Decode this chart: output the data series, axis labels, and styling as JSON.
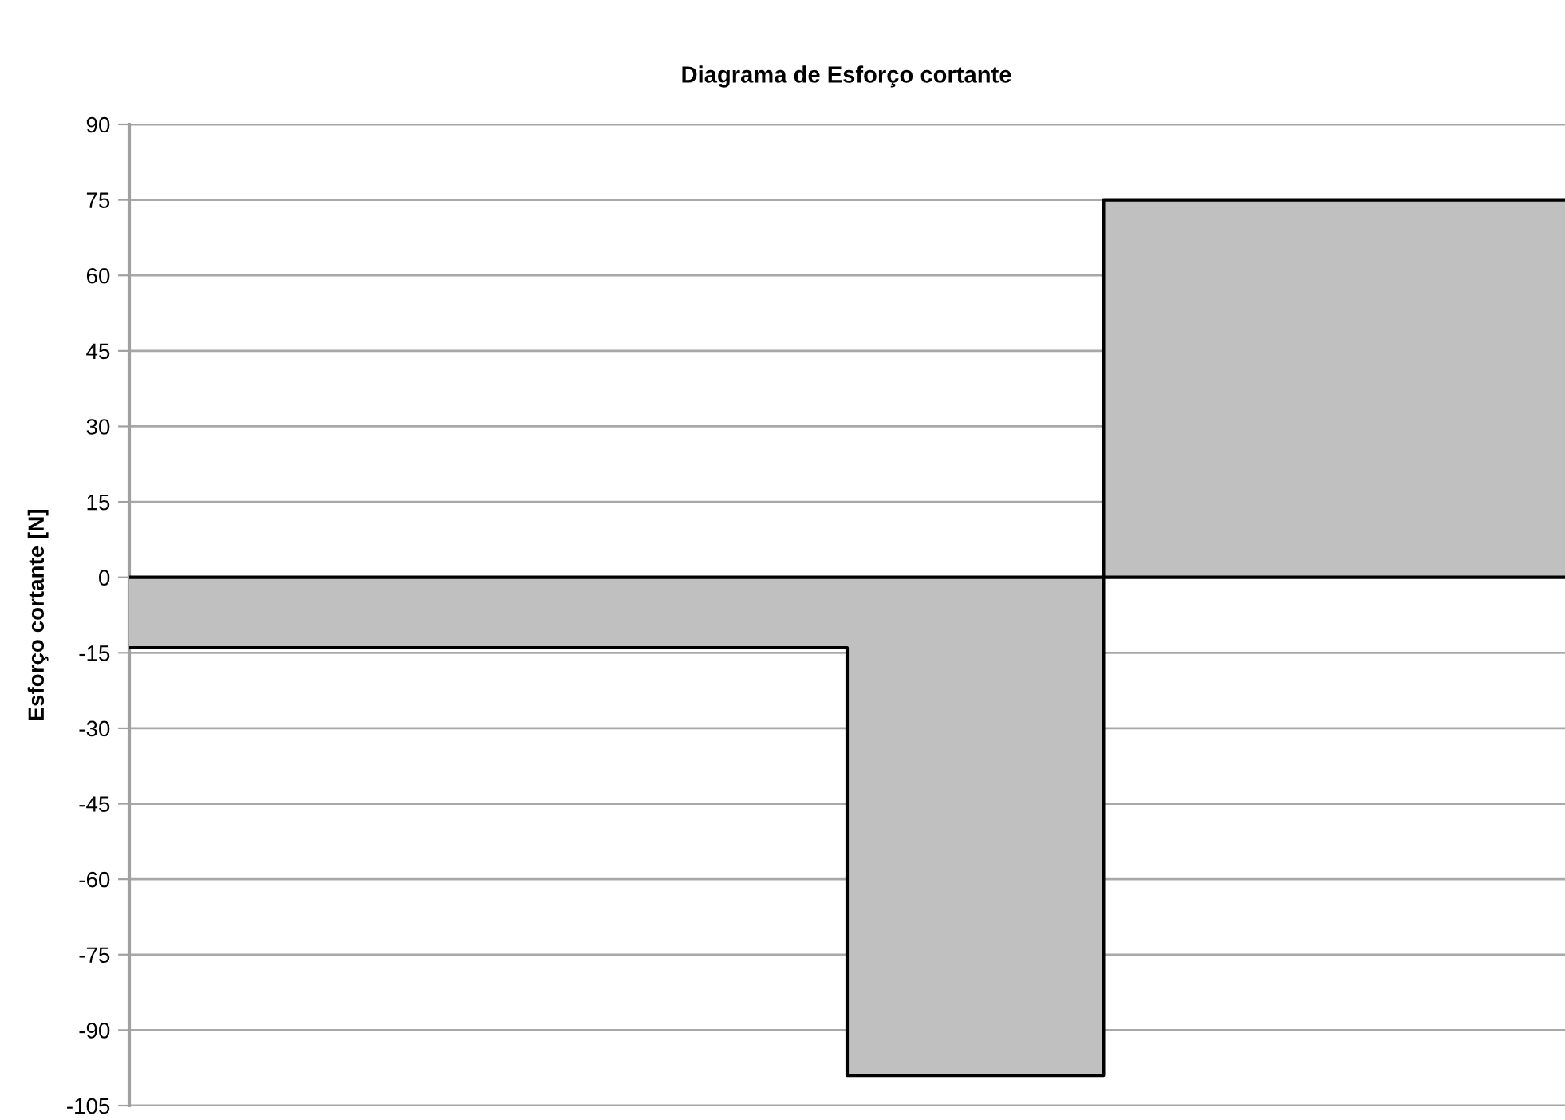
{
  "chart_data": {
    "type": "area",
    "title": "Diagrama de Esforço cortante",
    "ylabel": "Esforço cortante [N]",
    "categories": [
      null,
      null,
      null,
      null,
      null,
      null,
      null,
      null,
      null,
      null,
      null,
      null,
      null,
      null,
      null,
      null,
      null,
      null,
      null,
      null,
      null,
      null,
      null,
      null,
      null,
      null,
      null,
      null,
      null,
      null,
      null,
      null,
      null,
      null,
      null,
      null,
      null,
      null,
      null,
      null,
      null,
      null,
      null,
      null,
      null,
      null,
      null,
      null,
      null,
      null,
      null,
      null,
      null,
      null,
      null,
      null
    ],
    "series": [
      {
        "color": "#c0c0c0",
        "values": [
          -14,
          -14,
          -14,
          -14,
          -14,
          -14,
          -14,
          -14,
          -14,
          -14,
          -14,
          -14,
          -14,
          -14,
          -14,
          -14,
          -14,
          -14,
          -14,
          -14,
          -14,
          -14,
          -14,
          -14,
          -14,
          -14,
          -14,
          -14,
          -99,
          -99,
          -99,
          -99,
          -99,
          -99,
          -99,
          -99,
          -99,
          -99,
          75,
          75,
          75,
          75,
          75,
          75,
          75,
          75,
          75,
          75,
          75,
          75,
          75,
          75,
          75,
          75,
          75,
          75
        ]
      }
    ],
    "ylim": [
      -105,
      90
    ],
    "yticks": [
      -105,
      -90,
      -75,
      -60,
      -45,
      -30,
      -15,
      0,
      15,
      30,
      45,
      60,
      75,
      90
    ],
    "grid": "y",
    "tick_labels": "y"
  }
}
